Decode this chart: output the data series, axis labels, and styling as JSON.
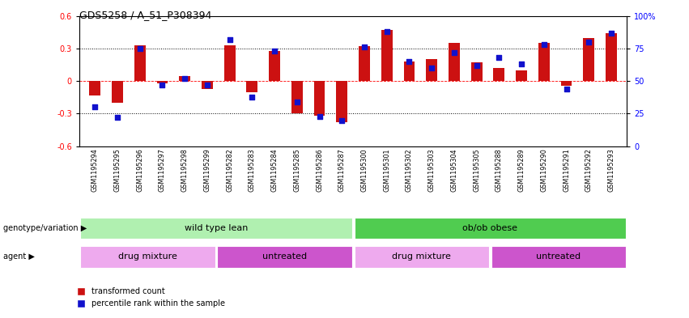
{
  "title": "GDS5258 / A_51_P308394",
  "samples": [
    "GSM1195294",
    "GSM1195295",
    "GSM1195296",
    "GSM1195297",
    "GSM1195298",
    "GSM1195299",
    "GSM1195282",
    "GSM1195283",
    "GSM1195284",
    "GSM1195285",
    "GSM1195286",
    "GSM1195287",
    "GSM1195300",
    "GSM1195301",
    "GSM1195302",
    "GSM1195303",
    "GSM1195304",
    "GSM1195305",
    "GSM1195288",
    "GSM1195289",
    "GSM1195290",
    "GSM1195291",
    "GSM1195292",
    "GSM1195293"
  ],
  "red_values": [
    -0.13,
    -0.2,
    0.33,
    -0.02,
    0.05,
    -0.07,
    0.33,
    -0.1,
    0.28,
    -0.3,
    -0.32,
    -0.38,
    0.32,
    0.47,
    0.18,
    0.2,
    0.35,
    0.17,
    0.12,
    0.1,
    0.35,
    -0.04,
    0.4,
    0.44
  ],
  "blue_values": [
    30,
    22,
    75,
    47,
    52,
    47,
    82,
    38,
    73,
    34,
    23,
    20,
    76,
    88,
    65,
    60,
    72,
    62,
    68,
    63,
    78,
    44,
    80,
    87
  ],
  "genotype_groups": [
    {
      "label": "wild type lean",
      "start": 0,
      "end": 12,
      "color": "#b0f0b0"
    },
    {
      "label": "ob/ob obese",
      "start": 12,
      "end": 24,
      "color": "#50cc50"
    }
  ],
  "agent_groups": [
    {
      "label": "drug mixture",
      "start": 0,
      "end": 6,
      "color": "#eeaaee"
    },
    {
      "label": "untreated",
      "start": 6,
      "end": 12,
      "color": "#cc55cc"
    },
    {
      "label": "drug mixture",
      "start": 12,
      "end": 18,
      "color": "#eeaaee"
    },
    {
      "label": "untreated",
      "start": 18,
      "end": 24,
      "color": "#cc55cc"
    }
  ],
  "ylim": [
    -0.6,
    0.6
  ],
  "yticks_left": [
    -0.6,
    -0.3,
    0.0,
    0.3,
    0.6
  ],
  "yticks_right": [
    0,
    25,
    50,
    75,
    100
  ],
  "hlines": [
    0.3,
    0.0,
    -0.3
  ],
  "bar_color_red": "#cc1111",
  "bar_color_blue": "#1111cc",
  "legend_red": "transformed count",
  "legend_blue": "percentile rank within the sample",
  "bar_width": 0.5
}
